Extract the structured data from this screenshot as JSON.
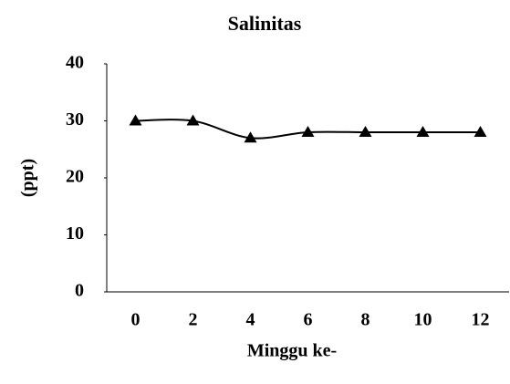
{
  "chart_data": {
    "type": "line",
    "title": "Salinitas",
    "x_label": "Minggu ke-",
    "y_label": "(ppt)",
    "categories": [
      "0",
      "2",
      "4",
      "6",
      "8",
      "10",
      "12"
    ],
    "series": [
      {
        "name": "Salinitas",
        "color": "#000000",
        "values": [
          30,
          30,
          27,
          28,
          28,
          28,
          28
        ]
      }
    ],
    "ylim": [
      0,
      40
    ],
    "yticks": [
      0,
      10,
      20,
      30,
      40
    ],
    "grid": false,
    "smooth": true,
    "marker": "triangle"
  }
}
